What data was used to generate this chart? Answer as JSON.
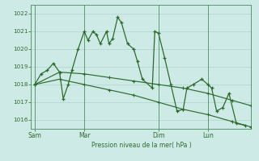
{
  "xlabel": "Pression niveau de la mer( hPa )",
  "bg_color": "#ceeae6",
  "grid_color": "#a8cfc8",
  "line_color": "#2d6b2d",
  "spine_color": "#4a8a5a",
  "ylim": [
    1015.5,
    1022.5
  ],
  "yticks": [
    1016,
    1017,
    1018,
    1019,
    1020,
    1021,
    1022
  ],
  "xtick_labels": [
    "Sam",
    "Mar",
    "Dim",
    "Lun"
  ],
  "xtick_positions": [
    0,
    4,
    10,
    14
  ],
  "xlim": [
    -0.3,
    17.5
  ],
  "series1_x": [
    0,
    0.5,
    1.0,
    1.5,
    2.0,
    2.3,
    2.7,
    3.0,
    3.5,
    4.0,
    4.3,
    4.7,
    5.0,
    5.3,
    5.8,
    6.0,
    6.3,
    6.7,
    7.0,
    7.5,
    8.0,
    8.3,
    8.7,
    9.5,
    9.7,
    10.0,
    10.5,
    11.0,
    11.5,
    12.0,
    12.3,
    12.8,
    13.5,
    14.0,
    14.3,
    14.7,
    15.2,
    15.7,
    16.3,
    17.0
  ],
  "series1_y": [
    1018.0,
    1018.6,
    1018.8,
    1019.2,
    1018.7,
    1017.2,
    1018.0,
    1018.8,
    1020.0,
    1021.0,
    1020.5,
    1021.0,
    1020.8,
    1020.3,
    1021.0,
    1020.3,
    1020.6,
    1021.8,
    1021.5,
    1020.3,
    1020.0,
    1019.3,
    1018.3,
    1017.8,
    1021.0,
    1020.9,
    1019.5,
    1018.0,
    1016.5,
    1016.6,
    1017.8,
    1018.0,
    1018.3,
    1018.0,
    1017.8,
    1016.5,
    1016.7,
    1017.5,
    1015.8,
    1015.7
  ],
  "series2_x": [
    0,
    2,
    4,
    6,
    8,
    10,
    12,
    14,
    16,
    17.5
  ],
  "series2_y": [
    1018.0,
    1018.7,
    1018.6,
    1018.4,
    1018.2,
    1018.0,
    1017.8,
    1017.5,
    1017.1,
    1016.8
  ],
  "series3_x": [
    0,
    2,
    4,
    6,
    8,
    10,
    12,
    14,
    16,
    17.5
  ],
  "series3_y": [
    1018.0,
    1018.3,
    1018.0,
    1017.7,
    1017.4,
    1017.0,
    1016.6,
    1016.3,
    1015.9,
    1015.6
  ]
}
